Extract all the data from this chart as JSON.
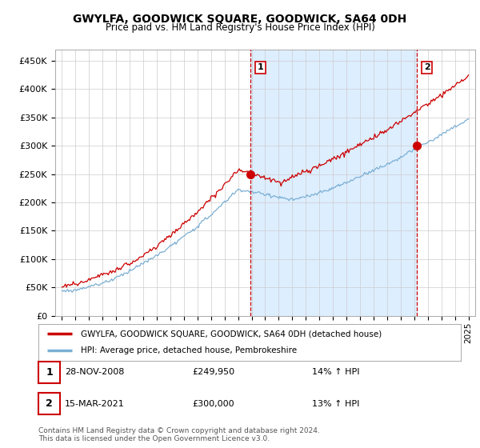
{
  "title": "GWYLFA, GOODWICK SQUARE, GOODWICK, SA64 0DH",
  "subtitle": "Price paid vs. HM Land Registry's House Price Index (HPI)",
  "ytick_values": [
    0,
    50000,
    100000,
    150000,
    200000,
    250000,
    300000,
    350000,
    400000,
    450000
  ],
  "ylim": [
    0,
    470000
  ],
  "xlim_start": 1994.5,
  "xlim_end": 2025.5,
  "sale1_x": 2008.91,
  "sale1_y": 249950,
  "sale1_label": "1",
  "sale1_date": "28-NOV-2008",
  "sale1_price": "£249,950",
  "sale1_hpi": "14% ↑ HPI",
  "sale2_x": 2021.21,
  "sale2_y": 300000,
  "sale2_label": "2",
  "sale2_date": "15-MAR-2021",
  "sale2_price": "£300,000",
  "sale2_hpi": "13% ↑ HPI",
  "line_color_property": "#cc0000",
  "line_color_hpi": "#7bafd4",
  "vline_color": "#cc0000",
  "shade_color": "#ddeeff",
  "legend_property": "GWYLFA, GOODWICK SQUARE, GOODWICK, SA64 0DH (detached house)",
  "legend_hpi": "HPI: Average price, detached house, Pembrokeshire",
  "footer": "Contains HM Land Registry data © Crown copyright and database right 2024.\nThis data is licensed under the Open Government Licence v3.0.",
  "background_color": "#ffffff",
  "grid_color": "#cccccc"
}
